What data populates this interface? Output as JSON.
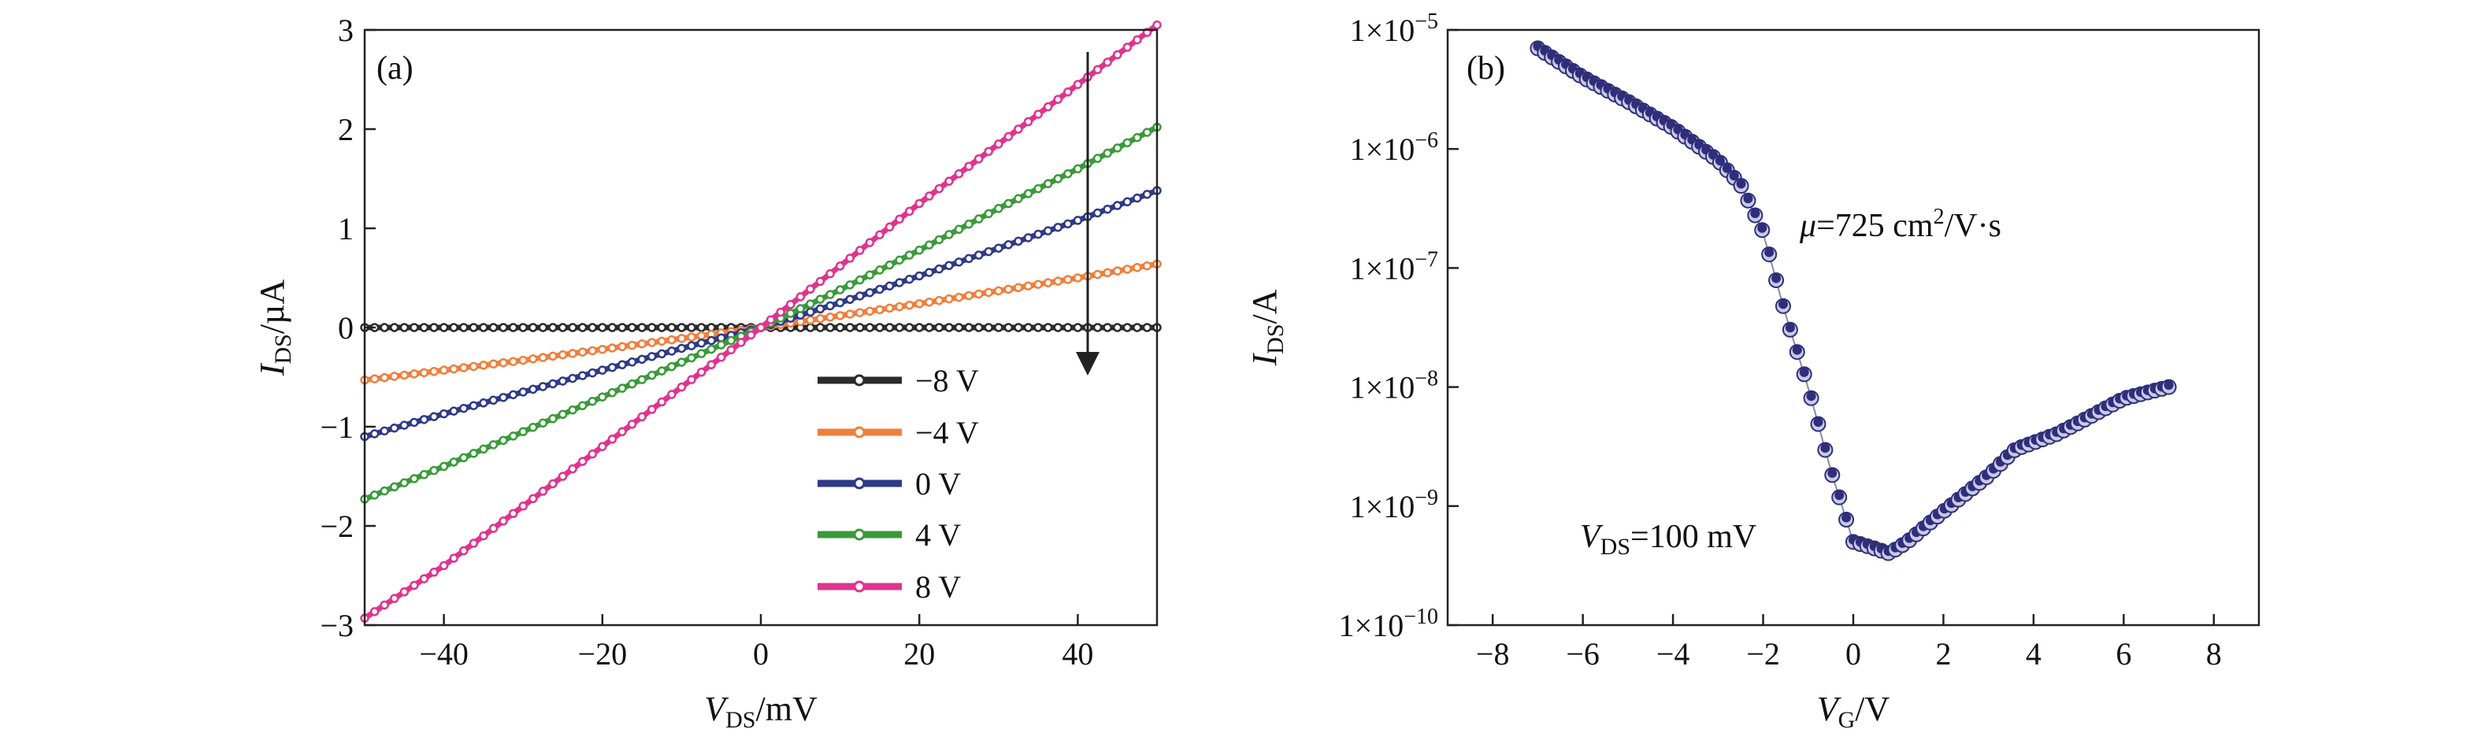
{
  "chart_data": [
    {
      "type": "line",
      "panel_label": "(a)",
      "xlabel": {
        "main": "V",
        "sub": "DS",
        "tail": "/mV"
      },
      "ylabel": {
        "main": "I",
        "sub": "DS",
        "tail": "/µA"
      },
      "xlim": [
        -50,
        50
      ],
      "ylim": [
        -3,
        3
      ],
      "xticks": [
        -40,
        -20,
        0,
        20,
        40
      ],
      "yticks": [
        -3,
        -2,
        -1,
        0,
        1,
        2,
        3
      ],
      "x": [
        -50,
        -40,
        -30,
        -20,
        -10,
        0,
        10,
        20,
        30,
        40,
        50
      ],
      "series": [
        {
          "name": "−8 V",
          "color": "#2b2b2b",
          "values": [
            0,
            0,
            0,
            0,
            0,
            0,
            0,
            0,
            0,
            0,
            0
          ]
        },
        {
          "name": "−4 V",
          "color": "#f07f3c",
          "values": [
            -0.53,
            -0.43,
            -0.33,
            -0.22,
            -0.11,
            0,
            0.12,
            0.24,
            0.37,
            0.5,
            0.64
          ]
        },
        {
          "name": "0 V",
          "color": "#2e3a87",
          "values": [
            -1.1,
            -0.87,
            -0.65,
            -0.43,
            -0.21,
            0,
            0.25,
            0.52,
            0.8,
            1.08,
            1.38
          ]
        },
        {
          "name": "4 V",
          "color": "#3a9a3a",
          "values": [
            -1.73,
            -1.4,
            -1.05,
            -0.7,
            -0.35,
            0,
            0.38,
            0.78,
            1.2,
            1.6,
            2.02
          ]
        },
        {
          "name": "8 V",
          "color": "#e0338f",
          "values": [
            -2.93,
            -2.4,
            -1.8,
            -1.2,
            -0.6,
            0,
            0.62,
            1.25,
            1.85,
            2.45,
            3.05
          ]
        }
      ],
      "legend_position": "lower-right",
      "annotations": [
        {
          "kind": "arrow",
          "x": 41,
          "y_from": 2.8,
          "y_to": -0.45
        }
      ]
    },
    {
      "type": "scatter",
      "panel_label": "(b)",
      "xlabel": {
        "main": "V",
        "sub": "G",
        "tail": "/V"
      },
      "ylabel": {
        "main": "I",
        "sub": "DS",
        "tail": "/A"
      },
      "xlim": [
        -9,
        9
      ],
      "ylim": [
        1e-10,
        1e-05
      ],
      "yscale": "log",
      "xticks": [
        -8,
        -6,
        -4,
        -2,
        0,
        2,
        4,
        6,
        8
      ],
      "yticks": [
        {
          "value": 1e-10,
          "base": "1×10",
          "exp": "−10"
        },
        {
          "value": 1e-09,
          "base": "1×10",
          "exp": "−9"
        },
        {
          "value": 1e-08,
          "base": "1×10",
          "exp": "−8"
        },
        {
          "value": 1e-07,
          "base": "1×10",
          "exp": "−7"
        },
        {
          "value": 1e-06,
          "base": "1×10",
          "exp": "−6"
        },
        {
          "value": 1e-05,
          "base": "1×10",
          "exp": "−5"
        }
      ],
      "marker_color": "#2e2e7a",
      "x": [
        -7,
        -6,
        -5,
        -4,
        -3,
        -2.5,
        -2,
        -1.5,
        -1,
        -0.5,
        0,
        0.4,
        0.8,
        1.2,
        2,
        3,
        3.6,
        4.5,
        5,
        6,
        7
      ],
      "y": [
        7e-06,
        4e-06,
        2.5e-06,
        1.5e-06,
        8e-07,
        5e-07,
        2e-07,
        4e-08,
        1e-08,
        2e-09,
        5e-10,
        4.5e-10,
        4e-10,
        5e-10,
        9e-10,
        1.8e-09,
        3e-09,
        4e-09,
        5e-09,
        8e-09,
        1e-08
      ],
      "annotations": [
        {
          "parts": [
            "μ",
            "=725 cm",
            "2",
            "/V·s"
          ]
        },
        {
          "parts": [
            "V",
            "DS",
            "=100 mV"
          ]
        }
      ]
    }
  ]
}
